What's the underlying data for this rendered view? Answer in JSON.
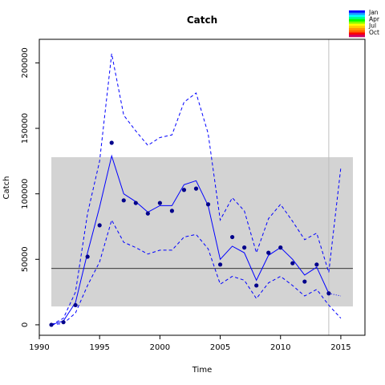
{
  "chart_data": {
    "type": "line",
    "title": "Catch",
    "xlabel": "Time",
    "ylabel": "Catch",
    "xlim": [
      1990,
      2017
    ],
    "ylim": [
      -8000,
      218000
    ],
    "x_ticks": [
      1990,
      1995,
      2000,
      2005,
      2010,
      2015
    ],
    "y_ticks": [
      0,
      50000,
      100000,
      150000,
      200000
    ],
    "grid": false,
    "legend_position": "top-right",
    "band": {
      "x_range": [
        1991,
        2016
      ],
      "y_range": [
        14000,
        128000
      ],
      "color": "#d3d3d3"
    },
    "reference_line": {
      "y": 43000,
      "color": "#000000"
    },
    "vertical_line": {
      "x": 2014,
      "color": "#bebebe"
    },
    "points": {
      "x": [
        1991,
        1992,
        1993,
        1994,
        1995,
        1996,
        1997,
        1998,
        1999,
        2000,
        2001,
        2002,
        2003,
        2004,
        2005,
        2006,
        2007,
        2008,
        2009,
        2010,
        2011,
        2012,
        2013,
        2014
      ],
      "y": [
        0,
        2000,
        15000,
        52000,
        76000,
        139000,
        95000,
        93000,
        85000,
        93000,
        87000,
        103000,
        104000,
        92000,
        46000,
        67000,
        59000,
        30000,
        55000,
        59000,
        47000,
        33000,
        46000,
        24000
      ],
      "color": "#00008b"
    },
    "series": [
      {
        "style": "solid",
        "color": "#0000ff",
        "x": [
          1991,
          1992,
          1993,
          1994,
          1995,
          1996,
          1997,
          1998,
          1999,
          2000,
          2001,
          2002,
          2003,
          2004,
          2005,
          2006,
          2007,
          2008,
          2009,
          2010,
          2011,
          2012,
          2013,
          2014
        ],
        "y": [
          0,
          3000,
          17000,
          55000,
          90000,
          129000,
          100000,
          94000,
          86000,
          91000,
          91000,
          107000,
          110000,
          91000,
          50000,
          60000,
          55000,
          34000,
          53000,
          59000,
          50000,
          38000,
          44000,
          24000
        ]
      },
      {
        "style": "dashed",
        "color": "#0000ff",
        "x": [
          1991,
          1992,
          1993,
          1994,
          1995,
          1996,
          1997,
          1998,
          1999,
          2000,
          2001,
          2002,
          2003,
          2004,
          2005,
          2006,
          2007,
          2008,
          2009,
          2010,
          2011,
          2012,
          2013,
          2014,
          2015
        ],
        "y": [
          0,
          5000,
          25000,
          85000,
          125000,
          207000,
          160000,
          148000,
          137000,
          143000,
          145000,
          170000,
          177000,
          146000,
          80000,
          97000,
          87000,
          55000,
          81000,
          92000,
          79000,
          65000,
          70000,
          40000,
          120000
        ]
      },
      {
        "style": "dashed",
        "color": "#0000ff",
        "x": [
          1991,
          1992,
          1993,
          1994,
          1995,
          1996,
          1997,
          1998,
          1999,
          2000,
          2001,
          2002,
          2003,
          2004,
          2005,
          2006,
          2007,
          2008,
          2009,
          2010,
          2011,
          2012,
          2013,
          2014,
          2015
        ],
        "y": [
          0,
          1000,
          9000,
          30000,
          48000,
          80000,
          63000,
          59000,
          54000,
          57000,
          57000,
          67000,
          69000,
          58000,
          31000,
          37000,
          34000,
          20000,
          32000,
          37000,
          30000,
          22000,
          27000,
          15000,
          5000
        ]
      },
      {
        "style": "dotted",
        "color": "#0000ff",
        "x": [
          2014,
          2015
        ],
        "y": [
          24000,
          22000
        ]
      }
    ],
    "legend": {
      "labels": [
        "Jan",
        "Apr",
        "Jul",
        "Oct"
      ],
      "colors": [
        "#0000ff",
        "#1e90ff",
        "#00ffff",
        "#00ff80",
        "#00ff00",
        "#80ff00",
        "#ffff00",
        "#ffcc00",
        "#ff9900",
        "#ff6600",
        "#ff0000",
        "#cc0066"
      ]
    }
  }
}
